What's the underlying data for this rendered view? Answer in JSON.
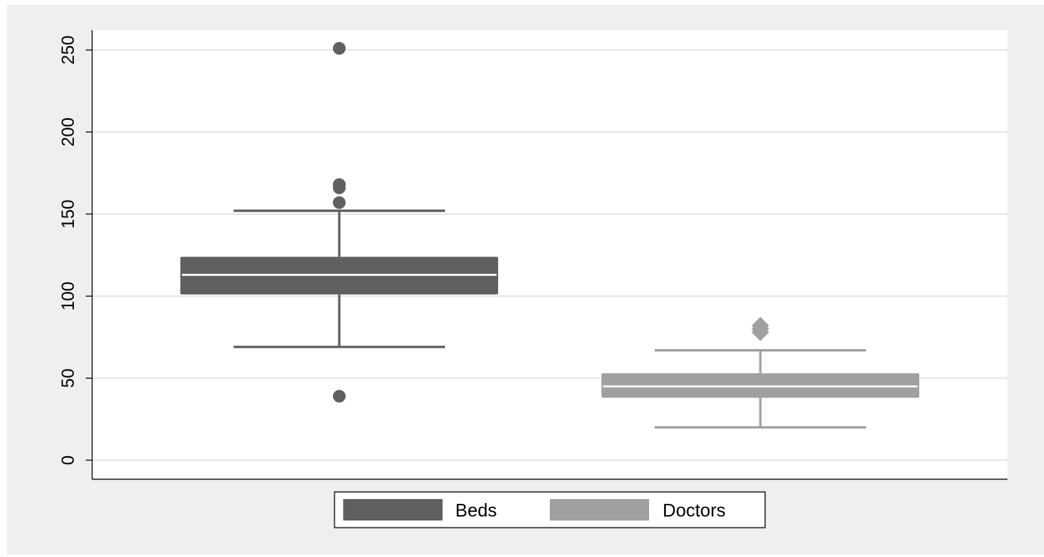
{
  "chart_data": {
    "type": "box",
    "ylim": [
      -10,
      262
    ],
    "yticks": [
      0,
      50,
      100,
      150,
      200,
      250
    ],
    "grid": true,
    "legend_position": "bottom",
    "colors": {
      "outer_background": "#efefef",
      "plot_background": "#ffffff",
      "grid": "#e6e6e6",
      "median_line": "#ffffff"
    },
    "series": [
      {
        "name": "Beds",
        "color": "#606060",
        "whisker_low": 69,
        "q1": 101,
        "median": 113,
        "q3": 124,
        "whisker_high": 152,
        "outliers": [
          251,
          168,
          166,
          157,
          39
        ],
        "marker": "circle"
      },
      {
        "name": "Doctors",
        "color": "#a0a0a0",
        "whisker_low": 20,
        "q1": 38,
        "median": 45,
        "q3": 53,
        "whisker_high": 67,
        "outliers": [
          82,
          80,
          78
        ],
        "marker": "diamond"
      }
    ]
  }
}
